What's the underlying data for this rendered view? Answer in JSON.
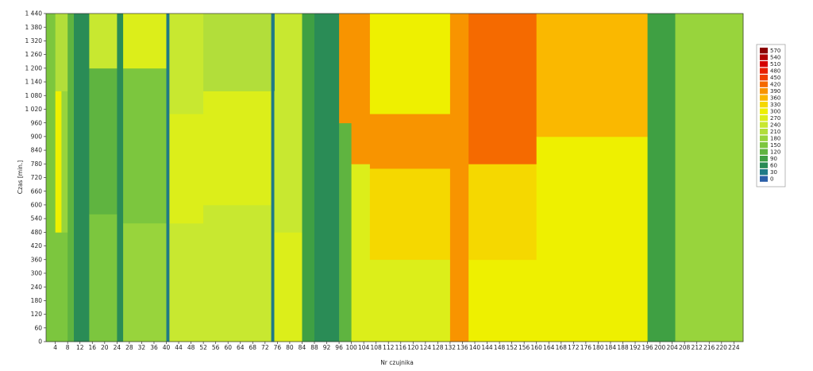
{
  "chart_data": {
    "type": "heatmap",
    "title": "",
    "xlabel": "Nr czujnika",
    "ylabel": "Czas [min.]",
    "x_range": [
      1,
      227
    ],
    "y_range": [
      0,
      1440
    ],
    "x_tick_labels": [
      "4",
      "8",
      "12",
      "16",
      "20",
      "24",
      "28",
      "32",
      "36",
      "40",
      "44",
      "48",
      "52",
      "56",
      "60",
      "64",
      "68",
      "72",
      "76",
      "80",
      "84",
      "88",
      "92",
      "96",
      "100",
      "104",
      "108",
      "112",
      "116",
      "120",
      "124",
      "128",
      "132",
      "136",
      "140",
      "144",
      "148",
      "152",
      "156",
      "160",
      "164",
      "168",
      "172",
      "176",
      "180",
      "184",
      "188",
      "192",
      "196",
      "200",
      "204",
      "208",
      "212",
      "216",
      "220",
      "224"
    ],
    "y_tick_labels": [
      "1 440",
      "1 380",
      "1 320",
      "1 260",
      "1 200",
      "1 140",
      "1 080",
      "1 020",
      "960",
      "900",
      "840",
      "780",
      "720",
      "660",
      "600",
      "540",
      "480",
      "420",
      "360",
      "300",
      "240",
      "180",
      "120",
      "60",
      "0"
    ],
    "legend_labels": [
      "570",
      "540",
      "510",
      "480",
      "450",
      "420",
      "390",
      "360",
      "330",
      "300",
      "270",
      "240",
      "210",
      "180",
      "150",
      "120",
      "90",
      "60",
      "30",
      "0"
    ],
    "legend_colors": [
      "#8b0000",
      "#b00000",
      "#d40000",
      "#e82000",
      "#f04000",
      "#f56a00",
      "#f89400",
      "#fab800",
      "#f5d800",
      "#eef000",
      "#dcee1a",
      "#c8e830",
      "#b2de3a",
      "#98d43c",
      "#7cc63e",
      "#5fb440",
      "#3fa043",
      "#2a8c56",
      "#1f7a86",
      "#2b5fa8"
    ],
    "grid": false,
    "legend_placement": "right",
    "regions": [
      {
        "x": [
          1,
          4
        ],
        "y": [
          0,
          1440
        ],
        "v": 150
      },
      {
        "x": [
          4,
          8
        ],
        "y": [
          0,
          480
        ],
        "v": 150
      },
      {
        "x": [
          4,
          6
        ],
        "y": [
          480,
          1100
        ],
        "v": 300
      },
      {
        "x": [
          6,
          8
        ],
        "y": [
          480,
          1200
        ],
        "v": 180
      },
      {
        "x": [
          4,
          8
        ],
        "y": [
          1100,
          1440
        ],
        "v": 210
      },
      {
        "x": [
          8,
          10
        ],
        "y": [
          0,
          1440
        ],
        "v": 120
      },
      {
        "x": [
          10,
          15
        ],
        "y": [
          0,
          1440
        ],
        "v": 60
      },
      {
        "x": [
          15,
          24
        ],
        "y": [
          0,
          560
        ],
        "v": 150
      },
      {
        "x": [
          15,
          24
        ],
        "y": [
          560,
          1200
        ],
        "v": 120
      },
      {
        "x": [
          15,
          24
        ],
        "y": [
          1200,
          1440
        ],
        "v": 240
      },
      {
        "x": [
          24,
          26
        ],
        "y": [
          0,
          1440
        ],
        "v": 60
      },
      {
        "x": [
          26,
          40
        ],
        "y": [
          0,
          520
        ],
        "v": 180
      },
      {
        "x": [
          26,
          40
        ],
        "y": [
          520,
          1200
        ],
        "v": 150
      },
      {
        "x": [
          26,
          40
        ],
        "y": [
          1200,
          1440
        ],
        "v": 270
      },
      {
        "x": [
          40,
          41
        ],
        "y": [
          0,
          1440
        ],
        "v": 30
      },
      {
        "x": [
          41,
          52
        ],
        "y": [
          0,
          520
        ],
        "v": 240
      },
      {
        "x": [
          41,
          52
        ],
        "y": [
          520,
          1000
        ],
        "v": 270
      },
      {
        "x": [
          41,
          52
        ],
        "y": [
          1000,
          1440
        ],
        "v": 240
      },
      {
        "x": [
          52,
          74
        ],
        "y": [
          0,
          600
        ],
        "v": 240
      },
      {
        "x": [
          52,
          74
        ],
        "y": [
          600,
          1100
        ],
        "v": 270
      },
      {
        "x": [
          52,
          74
        ],
        "y": [
          1100,
          1440
        ],
        "v": 210
      },
      {
        "x": [
          74,
          75
        ],
        "y": [
          0,
          1440
        ],
        "v": 30
      },
      {
        "x": [
          75,
          84
        ],
        "y": [
          0,
          480
        ],
        "v": 270
      },
      {
        "x": [
          75,
          84
        ],
        "y": [
          480,
          1100
        ],
        "v": 240
      },
      {
        "x": [
          84,
          88
        ],
        "y": [
          0,
          1440
        ],
        "v": 90
      },
      {
        "x": [
          88,
          96
        ],
        "y": [
          0,
          1440
        ],
        "v": 60
      },
      {
        "x": [
          96,
          100
        ],
        "y": [
          0,
          960
        ],
        "v": 120
      },
      {
        "x": [
          96,
          100
        ],
        "y": [
          960,
          1440
        ],
        "v": 390
      },
      {
        "x": [
          100,
          106
        ],
        "y": [
          0,
          780
        ],
        "v": 270
      },
      {
        "x": [
          100,
          106
        ],
        "y": [
          780,
          1440
        ],
        "v": 390
      },
      {
        "x": [
          106,
          132
        ],
        "y": [
          0,
          360
        ],
        "v": 270
      },
      {
        "x": [
          106,
          132
        ],
        "y": [
          360,
          760
        ],
        "v": 330
      },
      {
        "x": [
          106,
          132
        ],
        "y": [
          760,
          1000
        ],
        "v": 390
      },
      {
        "x": [
          106,
          132
        ],
        "y": [
          1000,
          1440
        ],
        "v": 300
      },
      {
        "x": [
          132,
          138
        ],
        "y": [
          0,
          1440
        ],
        "v": 390
      },
      {
        "x": [
          138,
          160
        ],
        "y": [
          0,
          360
        ],
        "v": 300
      },
      {
        "x": [
          138,
          160
        ],
        "y": [
          360,
          780
        ],
        "v": 330
      },
      {
        "x": [
          138,
          160
        ],
        "y": [
          780,
          1440
        ],
        "v": 420
      },
      {
        "x": [
          160,
          196
        ],
        "y": [
          0,
          360
        ],
        "v": 300
      },
      {
        "x": [
          160,
          196
        ],
        "y": [
          360,
          900
        ],
        "v": 300
      },
      {
        "x": [
          160,
          196
        ],
        "y": [
          900,
          1440
        ],
        "v": 360
      },
      {
        "x": [
          196,
          205
        ],
        "y": [
          0,
          1440
        ],
        "v": 90
      },
      {
        "x": [
          205,
          227
        ],
        "y": [
          0,
          1440
        ],
        "v": 180
      }
    ]
  }
}
